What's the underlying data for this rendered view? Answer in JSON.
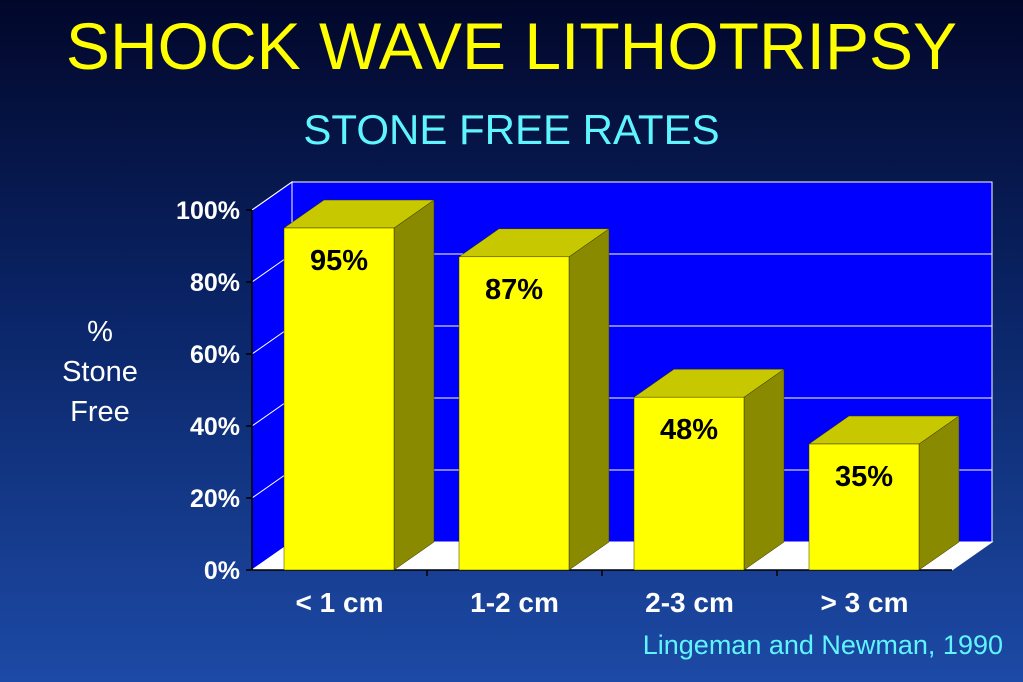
{
  "title": "SHOCK WAVE LITHOTRIPSY",
  "subtitle": "STONE FREE RATES",
  "source": "Lingeman and Newman, 1990",
  "colors": {
    "plot_back": "#0000ff",
    "bar_front": "#ffff00",
    "bar_top": "#c8c800",
    "bar_side": "#8a8a00",
    "floor": "#ffffff",
    "title": "#ffff00",
    "subtitle": "#5ff5ff"
  },
  "chart_data": {
    "type": "bar",
    "title": "STONE FREE RATES",
    "ylabel": "% Stone Free",
    "ylabel_lines": [
      "%",
      "Stone",
      "Free"
    ],
    "xlabel": "",
    "categories": [
      "< 1 cm",
      "1-2 cm",
      "2-3 cm",
      "> 3 cm"
    ],
    "values": [
      95,
      87,
      48,
      35
    ],
    "data_labels": [
      "95%",
      "87%",
      "48%",
      "35%"
    ],
    "ylim": [
      0,
      100
    ],
    "yticks": [
      0,
      20,
      40,
      60,
      80,
      100
    ],
    "ytick_labels": [
      "0%",
      "20%",
      "40%",
      "60%",
      "80%",
      "100%"
    ],
    "grid": true,
    "legend": "none",
    "style": "3d"
  }
}
